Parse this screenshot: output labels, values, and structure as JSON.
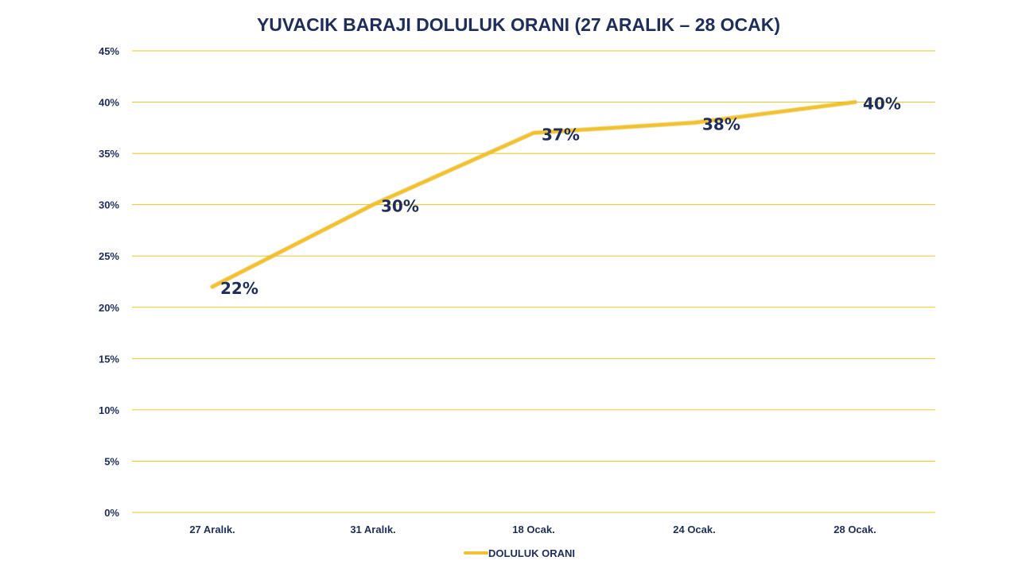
{
  "chart_data": {
    "type": "line",
    "title": "YUVACIK BARAJI DOLULUK ORANI (27 ARALIK – 28 OCAK)",
    "xlabel": "",
    "ylabel": "",
    "categories": [
      "27 Aralık.",
      "31 Aralık.",
      "18 Ocak.",
      "24 Ocak.",
      "28 Ocak."
    ],
    "series": [
      {
        "name": "DOLULUK ORANI",
        "values": [
          22,
          30,
          37,
          38,
          40
        ],
        "data_labels": [
          "22%",
          "30%",
          "37%",
          "38%",
          "40%"
        ],
        "color": "#f2c12e"
      }
    ],
    "ylim": [
      0,
      45
    ],
    "y_ticks": [
      0,
      5,
      10,
      15,
      20,
      25,
      30,
      35,
      40,
      45
    ],
    "y_tick_labels": [
      "0%",
      "5%",
      "10%",
      "15%",
      "20%",
      "25%",
      "30%",
      "35%",
      "40%",
      "45%"
    ],
    "grid": true,
    "grid_color": "#e8c825",
    "text_color": "#1f2d5a",
    "legend_position": "bottom"
  }
}
